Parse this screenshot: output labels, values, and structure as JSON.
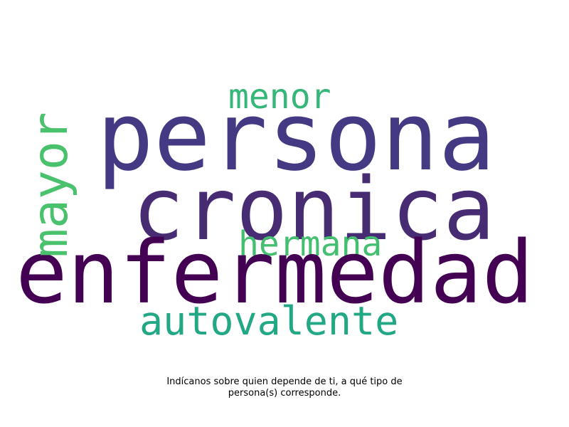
{
  "wordcloud": {
    "words": [
      {
        "id": "persona",
        "text": "persona",
        "color": "#443a83"
      },
      {
        "id": "cronica",
        "text": "cronica",
        "color": "#472b73"
      },
      {
        "id": "enfermedad",
        "text": "enfermedad",
        "color": "#440154"
      },
      {
        "id": "mayor",
        "text": "mayor",
        "color": "#4ac16d"
      },
      {
        "id": "menor",
        "text": "menor",
        "color": "#35b779"
      },
      {
        "id": "hermana",
        "text": "hermana",
        "color": "#44bf70"
      },
      {
        "id": "autovalente",
        "text": "autovalente",
        "color": "#22a884"
      }
    ]
  },
  "caption": {
    "line1": "Indícanos sobre quien depende de ti, a qué tipo de",
    "line2": "persona(s) corresponde."
  }
}
